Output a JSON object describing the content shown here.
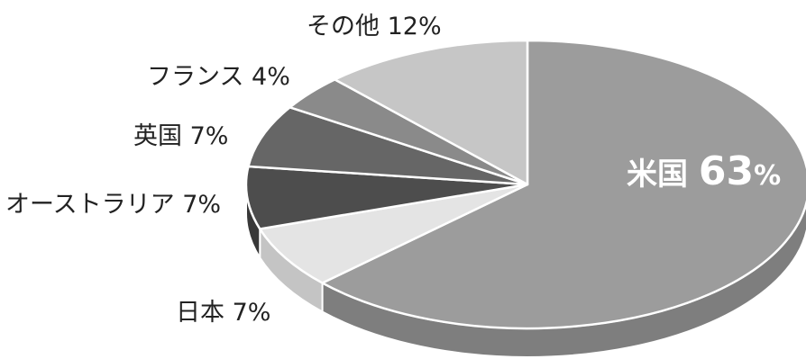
{
  "chart_data": {
    "type": "pie",
    "title": "",
    "slices": [
      {
        "name": "米国",
        "value": 63,
        "label": "米国",
        "pct": "63%",
        "color": "#9c9c9c",
        "side": "#7e7e7e"
      },
      {
        "name": "日本",
        "value": 7,
        "label": "日本",
        "pct": "7%",
        "color": "#e4e4e4",
        "side": "#c4c4c4"
      },
      {
        "name": "オーストラリア",
        "value": 7,
        "label": "オーストラリア",
        "pct": "7%",
        "color": "#4d4d4d",
        "side": "#383838"
      },
      {
        "name": "英国",
        "value": 7,
        "label": "英国",
        "pct": "7%",
        "color": "#666666",
        "side": "#4c4c4c"
      },
      {
        "name": "フランス",
        "value": 4,
        "label": "フランス",
        "pct": "4%",
        "color": "#8a8a8a",
        "side": "#6e6e6e"
      },
      {
        "name": "その他",
        "value": 12,
        "label": "その他",
        "pct": "12%",
        "color": "#c6c6c6",
        "side": "#a6a6a6"
      }
    ],
    "legend": "none",
    "labels_inside": [
      "米国"
    ]
  }
}
